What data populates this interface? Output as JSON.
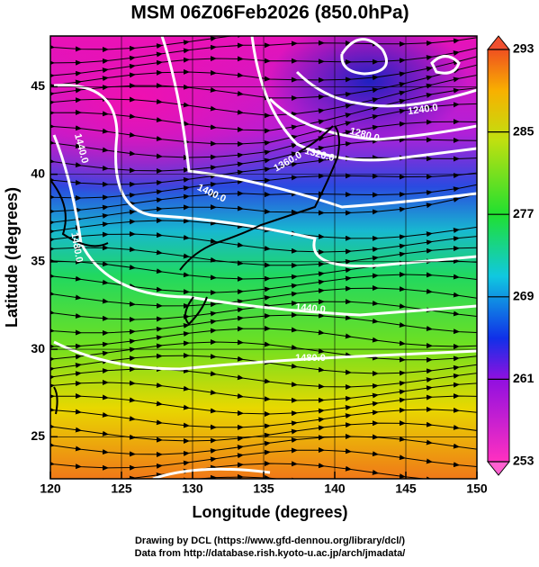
{
  "map": {
    "title": "MSM 06Z06Feb2026 (850.0hPa)",
    "xlabel": "Longitude (degrees)",
    "ylabel": "Latitude  (degrees)",
    "xlim": [
      120,
      150
    ],
    "ylim": [
      22.6,
      47.9
    ],
    "xticks": [
      120,
      125,
      130,
      135,
      140,
      145,
      150
    ],
    "yticks": [
      25,
      30,
      35,
      40,
      45
    ],
    "colorbar": {
      "lim": [
        253,
        293
      ],
      "ticks": [
        253,
        261,
        269,
        277,
        285,
        293
      ]
    },
    "contour_labels": [
      "1240.0",
      "1280.0",
      "1320.0",
      "1360.0",
      "1400.0",
      "1440.0",
      "1480.0",
      "1440.0",
      "1480.0"
    ]
  },
  "footer": [
    "Drawing by DCL (https://www.gfd-dennou.org/library/dcl/)",
    "Data from http://database.rish.kyoto-u.ac.jp/arch/jmadata/"
  ]
}
